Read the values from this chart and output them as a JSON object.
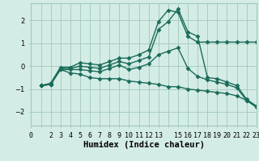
{
  "background_color": "#d4ece6",
  "grid_color": "#a0c8bc",
  "line_color": "#1a6b5a",
  "line_width": 1.0,
  "marker": "D",
  "marker_size": 2.5,
  "xlabel": "Humidex (Indice chaleur)",
  "xlabel_fontsize": 7.5,
  "tick_fontsize": 6.0,
  "x_ticks_labeled": [
    0,
    2,
    3,
    4,
    5,
    6,
    7,
    8,
    9,
    10,
    11,
    12,
    13,
    15,
    16,
    17,
    18,
    19,
    20,
    21,
    22,
    23
  ],
  "x_ticks_all": [
    0,
    1,
    2,
    3,
    4,
    5,
    6,
    7,
    8,
    9,
    10,
    11,
    12,
    13,
    14,
    15,
    16,
    17,
    18,
    19,
    20,
    21,
    22,
    23
  ],
  "ylim": [
    -2.6,
    2.75
  ],
  "xlim": [
    0,
    23
  ],
  "series": [
    {
      "x": [
        1,
        2,
        3,
        4,
        5,
        6,
        7,
        8,
        9,
        10,
        11,
        12,
        13,
        14,
        15,
        16,
        17,
        18,
        19,
        20,
        21,
        22,
        23
      ],
      "y": [
        -0.85,
        -0.75,
        -0.05,
        -0.05,
        0.15,
        0.1,
        0.05,
        0.2,
        0.35,
        0.35,
        0.5,
        0.7,
        1.95,
        2.45,
        2.35,
        1.3,
        1.05,
        1.05,
        1.05,
        1.05,
        1.05,
        1.05,
        1.05
      ]
    },
    {
      "x": [
        1,
        2,
        3,
        4,
        5,
        6,
        7,
        8,
        9,
        10,
        11,
        12,
        13,
        14,
        15,
        16,
        17,
        18,
        19,
        20,
        21,
        22,
        23
      ],
      "y": [
        -0.85,
        -0.8,
        -0.1,
        -0.1,
        0.0,
        -0.05,
        -0.1,
        0.05,
        0.2,
        0.1,
        0.25,
        0.4,
        1.6,
        1.95,
        2.5,
        1.5,
        1.3,
        -0.5,
        -0.55,
        -0.7,
        -0.85,
        -1.45,
        -1.75
      ]
    },
    {
      "x": [
        1,
        2,
        3,
        4,
        5,
        6,
        7,
        8,
        9,
        10,
        11,
        12,
        13,
        14,
        15,
        16,
        17,
        18,
        19,
        20,
        21,
        22,
        23
      ],
      "y": [
        -0.85,
        -0.8,
        -0.15,
        -0.15,
        -0.15,
        -0.2,
        -0.25,
        -0.1,
        0.05,
        -0.15,
        -0.05,
        0.1,
        0.5,
        0.65,
        0.8,
        -0.1,
        -0.45,
        -0.6,
        -0.7,
        -0.8,
        -0.95,
        -1.5,
        -1.8
      ]
    },
    {
      "x": [
        1,
        2,
        3,
        4,
        5,
        6,
        7,
        8,
        9,
        10,
        11,
        12,
        13,
        14,
        15,
        16,
        17,
        18,
        19,
        20,
        21,
        22,
        23
      ],
      "y": [
        -0.85,
        -0.8,
        -0.15,
        -0.3,
        -0.35,
        -0.5,
        -0.55,
        -0.55,
        -0.55,
        -0.65,
        -0.7,
        -0.75,
        -0.8,
        -0.9,
        -0.9,
        -1.0,
        -1.05,
        -1.1,
        -1.15,
        -1.2,
        -1.3,
        -1.5,
        -1.75
      ]
    }
  ]
}
